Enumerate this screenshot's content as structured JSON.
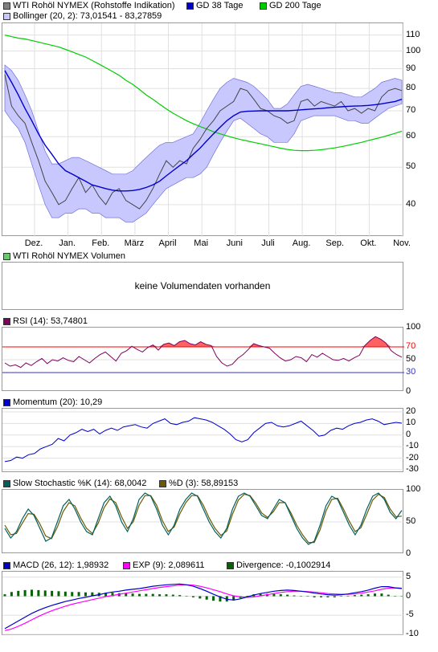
{
  "colors": {
    "price_line": "#444444",
    "band_fill": "#c8c8ff",
    "band_edge": "#7070d8",
    "ma38": "#0000cc",
    "ma200": "#00cc00",
    "rsi": "#800060",
    "rsi_fill": "#ff6060",
    "momentum": "#0000cc",
    "stoch_k": "#006060",
    "stoch_d": "#6b5a00",
    "macd": "#0000cc",
    "exp": "#ff00ff",
    "divergence": "#006600",
    "grid": "#e0e0e0"
  },
  "legends": {
    "price": [
      {
        "label": "WTI Rohöl NYMEX (Rohstoffe Indikation)",
        "color": "#808080"
      },
      {
        "label": "GD 38 Tage",
        "color": "#0000cc"
      },
      {
        "label": "GD 200 Tage",
        "color": "#00cc00"
      },
      {
        "label": "Bollinger (20, 2): 73,01541 - 83,27859",
        "color": "#c8c8ff"
      }
    ],
    "volume": {
      "label": "WTI Rohöl NYMEX Volumen",
      "color": "#66cc66"
    },
    "rsi": {
      "label": "RSI (14): 53,74801",
      "color": "#800060"
    },
    "momentum": {
      "label": "Momentum (20): 10,29",
      "color": "#0000cc"
    },
    "stoch": [
      {
        "label": "Slow Stochastic %K (14): 68,0042",
        "color": "#006060"
      },
      {
        "label": "%D (3): 58,89153",
        "color": "#6b5a00"
      }
    ],
    "macd": [
      {
        "label": "MACD (26, 12): 1,98932",
        "color": "#0000cc"
      },
      {
        "label": "EXP (9): 2,089611",
        "color": "#ff00ff"
      },
      {
        "label": "Divergence: -0,1002914",
        "color": "#006600"
      }
    ]
  },
  "no_volume_text": "keine Volumendaten vorhanden",
  "chart_data": [
    {
      "type": "line",
      "title": "WTI Rohöl NYMEX (Rohstoffe Indikation)",
      "scale": "log",
      "x_ticks": [
        "Dez.",
        "Jan.",
        "Feb.",
        "März",
        "April",
        "Mai",
        "Juni",
        "Juli",
        "Aug.",
        "Sep.",
        "Okt.",
        "Nov."
      ],
      "y_ticks": [
        40,
        50,
        60,
        70,
        80,
        90,
        100,
        110
      ],
      "ylim": [
        33,
        118
      ],
      "n_points": 60,
      "series": [
        {
          "name": "WTI Rohöl NYMEX (Rohstoffe Indikation)",
          "values": [
            87,
            72,
            68,
            65,
            58,
            52,
            46,
            43,
            40,
            41,
            44,
            47,
            43,
            45,
            42,
            40,
            43,
            44,
            41,
            40,
            39,
            41,
            44,
            48,
            52,
            50,
            52,
            51,
            56,
            59,
            63,
            66,
            70,
            72,
            74,
            80,
            79,
            75,
            71,
            70,
            68,
            67,
            65,
            66,
            74,
            75,
            72,
            74,
            73,
            72,
            74,
            70,
            71,
            69,
            71,
            70,
            76,
            79,
            80,
            79
          ]
        },
        {
          "name": "GD 38 Tage",
          "values": [
            89,
            83,
            77,
            71,
            66,
            61,
            57,
            54,
            51,
            49,
            48,
            47,
            46,
            45,
            44.5,
            44,
            43.6,
            43.4,
            43.4,
            43.5,
            43.8,
            44.3,
            45,
            46,
            47.5,
            49,
            50.5,
            52,
            54,
            56,
            58.5,
            61,
            63.5,
            66,
            68,
            69.5,
            69.8,
            69.9,
            70,
            70,
            70,
            70,
            70,
            70.2,
            70.4,
            70.6,
            70.8,
            71,
            71.3,
            71.5,
            71.7,
            71.9,
            72,
            72.1,
            72.3,
            72.6,
            73,
            73.5,
            74,
            75
          ]
        },
        {
          "name": "GD 200 Tage",
          "values": [
            110,
            109,
            108,
            107.5,
            106.5,
            105.5,
            104.5,
            103.5,
            102.5,
            101,
            99.5,
            98,
            96.5,
            94.5,
            92.5,
            90.5,
            88.5,
            86.5,
            84,
            82,
            79.5,
            77,
            75,
            72.8,
            70.8,
            69,
            67.5,
            66,
            64.8,
            63.8,
            62.8,
            61.8,
            61,
            60.3,
            59.6,
            59,
            58.5,
            58,
            57.5,
            57,
            56.5,
            56,
            55.6,
            55.3,
            55.2,
            55.2,
            55.3,
            55.5,
            55.8,
            56.1,
            56.5,
            57,
            57.5,
            58,
            58.6,
            59.2,
            59.8,
            60.5,
            61.2,
            62
          ]
        },
        {
          "name": "Bollinger (20, 2): 73,01541 - 83,27859",
          "upper": [
            92,
            89,
            84,
            77,
            70,
            62,
            55,
            51,
            51,
            52,
            53,
            53,
            52,
            51,
            50,
            49,
            48,
            48,
            48,
            49,
            51,
            53,
            55,
            57,
            58,
            58,
            59,
            60,
            61,
            65,
            70,
            75,
            80,
            83,
            85,
            84,
            83,
            81,
            78,
            75,
            71,
            71,
            73,
            77,
            81,
            82,
            81,
            80,
            79,
            78,
            78,
            77,
            76,
            76,
            78,
            80,
            83,
            84,
            85,
            84
          ],
          "lower": [
            70,
            66,
            63,
            58,
            51,
            45,
            40,
            37,
            37,
            38,
            38,
            39,
            39,
            38,
            38,
            37,
            37,
            37,
            36,
            36,
            37,
            38,
            40,
            42,
            44,
            45,
            46,
            47,
            47,
            48,
            50,
            54,
            58,
            62,
            66,
            67,
            65,
            63,
            61,
            60,
            58,
            58,
            58,
            61,
            66,
            67,
            68,
            68,
            68,
            68,
            67,
            66,
            66,
            65,
            65,
            67,
            69,
            71,
            72,
            73
          ]
        }
      ]
    },
    {
      "type": "line",
      "title": "RSI (14): 53,74801",
      "y_ticks": [
        0,
        30,
        50,
        70,
        100
      ],
      "ylim": [
        0,
        100
      ],
      "reference_lines": [
        30,
        70
      ],
      "series": [
        {
          "name": "RSI (14): 53,74801",
          "values": [
            45,
            40,
            42,
            38,
            45,
            41,
            47,
            52,
            44,
            50,
            48,
            53,
            49,
            47,
            55,
            50,
            45,
            52,
            58,
            62,
            55,
            48,
            60,
            64,
            71,
            66,
            62,
            69,
            73,
            65,
            74,
            76,
            72,
            78,
            80,
            75,
            73,
            78,
            74,
            72,
            55,
            45,
            40,
            43,
            52,
            58,
            66,
            75,
            72,
            70,
            68,
            60,
            53,
            48,
            50,
            55,
            53,
            47,
            58,
            54,
            60,
            55,
            50,
            49,
            52,
            48,
            53,
            57,
            72,
            80,
            86,
            82,
            76,
            64,
            58,
            54
          ]
        }
      ]
    },
    {
      "type": "line",
      "title": "Momentum (20): 10,29",
      "y_ticks": [
        -30,
        -20,
        -10,
        0,
        10,
        20
      ],
      "ylim": [
        -30,
        20
      ],
      "series": [
        {
          "name": "Momentum (20): 10,29",
          "values": [
            -23,
            -22,
            -19,
            -20,
            -17,
            -16,
            -12,
            -10,
            -8,
            -3,
            -5,
            0,
            2,
            5,
            3,
            5,
            1,
            4,
            6,
            4,
            7,
            8,
            9,
            7,
            6,
            10,
            12,
            14,
            10,
            9,
            11,
            12,
            15,
            14,
            13,
            11,
            8,
            5,
            1,
            -4,
            -6,
            -4,
            2,
            6,
            10,
            11,
            8,
            7,
            8,
            10,
            12,
            8,
            4,
            -1,
            0,
            4,
            6,
            5,
            8,
            10,
            11,
            13,
            14,
            12,
            9,
            10,
            11,
            10.3
          ]
        }
      ]
    },
    {
      "type": "line",
      "title": "Slow Stochastic",
      "y_ticks": [
        0,
        50,
        100
      ],
      "ylim": [
        0,
        100
      ],
      "series": [
        {
          "name": "Slow Stochastic %K (14): 68,0042",
          "values": [
            40,
            25,
            35,
            55,
            70,
            60,
            40,
            20,
            25,
            50,
            75,
            85,
            70,
            50,
            35,
            30,
            55,
            80,
            90,
            75,
            50,
            35,
            55,
            85,
            95,
            90,
            70,
            45,
            30,
            45,
            70,
            85,
            95,
            90,
            70,
            50,
            35,
            25,
            40,
            70,
            90,
            95,
            90,
            75,
            60,
            55,
            70,
            85,
            80,
            60,
            40,
            25,
            15,
            20,
            45,
            75,
            90,
            85,
            65,
            45,
            30,
            45,
            70,
            90,
            95,
            85,
            65,
            55,
            68
          ]
        },
        {
          "name": "%D (3): 58,89153",
          "values": [
            45,
            30,
            32,
            48,
            63,
            62,
            47,
            28,
            24,
            42,
            66,
            80,
            75,
            56,
            40,
            32,
            48,
            72,
            86,
            80,
            58,
            40,
            50,
            76,
            91,
            91,
            76,
            52,
            35,
            42,
            63,
            80,
            91,
            91,
            76,
            56,
            40,
            29,
            36,
            62,
            84,
            93,
            91,
            79,
            64,
            57,
            66,
            80,
            80,
            64,
            45,
            30,
            18,
            18,
            38,
            67,
            85,
            87,
            70,
            51,
            35,
            41,
            62,
            84,
            93,
            88,
            70,
            58,
            59
          ]
        }
      ]
    },
    {
      "type": "line",
      "title": "MACD",
      "y_ticks": [
        -10,
        -5,
        0,
        5
      ],
      "ylim": [
        -10,
        6
      ],
      "series": [
        {
          "name": "MACD (26, 12): 1,98932",
          "values": [
            -8.5,
            -7.5,
            -6.5,
            -5.5,
            -4.5,
            -3.7,
            -3,
            -2.4,
            -1.9,
            -1.4,
            -1,
            -0.6,
            -0.3,
            0.1,
            0.4,
            0.8,
            1.1,
            1.3,
            1.6,
            1.8,
            2,
            2.3,
            2.6,
            2.8,
            3,
            3.1,
            3.2,
            3,
            2.6,
            2,
            1.3,
            0.5,
            -0.2,
            -0.8,
            -1,
            -0.7,
            -0.2,
            0.3,
            0.7,
            1,
            1.3,
            1.5,
            1.6,
            1.5,
            1.3,
            1.1,
            0.8,
            0.6,
            0.4,
            0.3,
            0.4,
            0.6,
            0.9,
            1.2,
            1.6,
            2.1,
            2.5,
            2.5,
            2.2,
            2.0
          ]
        },
        {
          "name": "EXP (9): 2,089611",
          "values": [
            -9,
            -8.6,
            -7.9,
            -7.1,
            -6.2,
            -5.3,
            -4.5,
            -3.8,
            -3.2,
            -2.6,
            -2.1,
            -1.7,
            -1.3,
            -0.9,
            -0.5,
            -0.1,
            0.2,
            0.5,
            0.8,
            1.1,
            1.4,
            1.7,
            2,
            2.3,
            2.5,
            2.7,
            2.9,
            3,
            2.9,
            2.6,
            2.2,
            1.7,
            1.2,
            0.6,
            0.1,
            -0.2,
            -0.3,
            -0.2,
            0.1,
            0.4,
            0.7,
            1,
            1.2,
            1.3,
            1.3,
            1.2,
            1.1,
            0.9,
            0.7,
            0.6,
            0.5,
            0.5,
            0.6,
            0.8,
            1.1,
            1.4,
            1.8,
            2.1,
            2.2,
            2.1
          ]
        },
        {
          "name": "Divergence: -0,1002914",
          "values": [
            0.5,
            1.1,
            1.4,
            1.6,
            1.7,
            1.6,
            1.5,
            1.4,
            1.3,
            1.2,
            1.1,
            1.1,
            1,
            1,
            0.9,
            0.9,
            0.9,
            0.8,
            0.8,
            0.7,
            0.6,
            0.6,
            0.6,
            0.5,
            0.5,
            0.4,
            0.3,
            0,
            -0.3,
            -0.6,
            -0.9,
            -1.2,
            -1.4,
            -1.4,
            -1.1,
            -0.5,
            0.1,
            0.5,
            0.6,
            0.6,
            0.6,
            0.5,
            0.4,
            0.2,
            0,
            -0.1,
            -0.3,
            -0.3,
            -0.3,
            -0.3,
            -0.1,
            0.1,
            0.3,
            0.4,
            0.5,
            0.7,
            0.7,
            0.4,
            0,
            -0.1
          ]
        }
      ]
    }
  ]
}
